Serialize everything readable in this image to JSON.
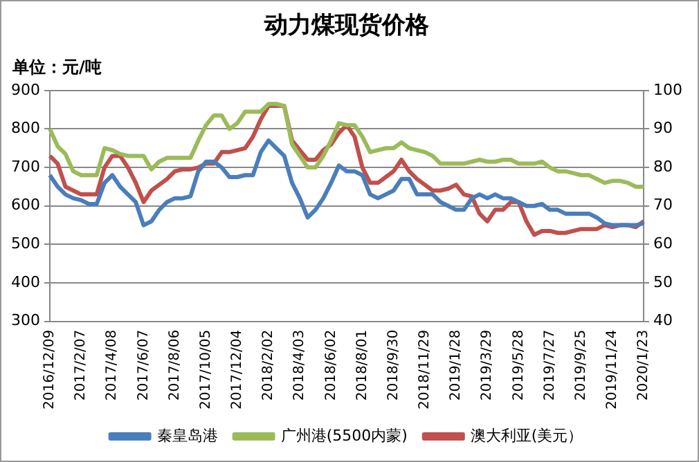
{
  "chart_data": {
    "type": "line",
    "title": "动力煤现货价格",
    "ylabel": "单位：元/吨",
    "categories": [
      "2016/12/09",
      null,
      null,
      null,
      "2017/2/07",
      null,
      null,
      null,
      "2017/4/08",
      null,
      null,
      null,
      "2017/6/07",
      null,
      null,
      null,
      "2017/8/06",
      null,
      null,
      null,
      "2017/10/05",
      null,
      null,
      null,
      "2017/12/04",
      null,
      null,
      null,
      "2018/2/02",
      null,
      null,
      null,
      "2018/4/03",
      null,
      null,
      null,
      "2018/6/02",
      null,
      null,
      null,
      "2018/8/01",
      null,
      null,
      null,
      "2018/9/30",
      null,
      null,
      null,
      "2018/11/29",
      null,
      null,
      null,
      "2019/1/28",
      null,
      null,
      null,
      "2019/3/29",
      null,
      null,
      null,
      "2019/5/28",
      null,
      null,
      null,
      "2019/7/27",
      null,
      null,
      null,
      "2019/9/25",
      null,
      null,
      null,
      "2019/11/24",
      null,
      null,
      null,
      "2020/1/23"
    ],
    "series": [
      {
        "name": "秦皇岛港",
        "color": "#4a7ebb",
        "values": [
          680,
          650,
          630,
          620,
          615,
          605,
          605,
          660,
          680,
          650,
          630,
          610,
          550,
          560,
          590,
          610,
          620,
          620,
          625,
          690,
          715,
          715,
          700,
          675,
          675,
          680,
          680,
          740,
          770,
          750,
          730,
          660,
          620,
          570,
          590,
          620,
          660,
          705,
          690,
          690,
          680,
          630,
          620,
          630,
          640,
          670,
          670,
          630,
          630,
          630,
          610,
          600,
          590,
          590,
          620,
          630,
          620,
          630,
          620,
          620,
          610,
          600,
          600,
          605,
          590,
          590,
          580,
          580,
          580,
          580,
          570,
          555,
          550,
          550,
          550,
          550,
          555
        ]
      },
      {
        "name": "广州港(5500内蒙)",
        "color": "#9bbb59",
        "values": [
          800,
          755,
          735,
          690,
          680,
          680,
          680,
          750,
          745,
          735,
          730,
          730,
          730,
          695,
          715,
          725,
          725,
          725,
          725,
          770,
          810,
          835,
          835,
          800,
          815,
          845,
          845,
          845,
          865,
          865,
          860,
          760,
          730,
          700,
          700,
          730,
          770,
          815,
          810,
          810,
          780,
          740,
          745,
          750,
          750,
          765,
          750,
          745,
          740,
          730,
          710,
          710,
          710,
          710,
          715,
          720,
          715,
          715,
          720,
          720,
          710,
          710,
          710,
          715,
          700,
          690,
          690,
          685,
          680,
          680,
          670,
          660,
          665,
          665,
          660,
          650,
          650
        ]
      },
      {
        "name": "澳大利亚(美元）",
        "color": "#c0504d",
        "axis": "y2",
        "values": [
          83,
          81,
          75,
          74,
          73,
          73,
          73,
          80,
          83,
          83,
          80,
          76,
          71,
          74,
          75.5,
          77,
          79,
          79.5,
          79.5,
          80,
          81,
          81,
          84,
          84,
          84.5,
          85,
          88,
          92.5,
          96,
          96,
          96,
          87,
          84.5,
          82,
          82,
          84.5,
          86,
          89,
          91,
          88,
          80,
          76,
          76,
          77.5,
          79,
          82,
          79,
          77,
          75.5,
          74,
          74,
          74.5,
          75.5,
          73,
          72.5,
          68,
          66,
          69,
          69,
          71,
          71,
          66,
          62.5,
          63.5,
          63.5,
          63,
          63,
          63.5,
          64,
          64,
          64,
          65,
          64.5,
          65,
          65,
          64.5,
          66
        ]
      }
    ],
    "ylim": [
      300,
      900
    ],
    "yticks": [
      300,
      400,
      500,
      600,
      700,
      800,
      900
    ],
    "y2lim": [
      40,
      100
    ],
    "y2ticks": [
      40,
      50,
      60,
      70,
      80,
      90,
      100
    ],
    "grid": "y",
    "legend": "bottom",
    "marker": "none",
    "line_style": "solid"
  }
}
